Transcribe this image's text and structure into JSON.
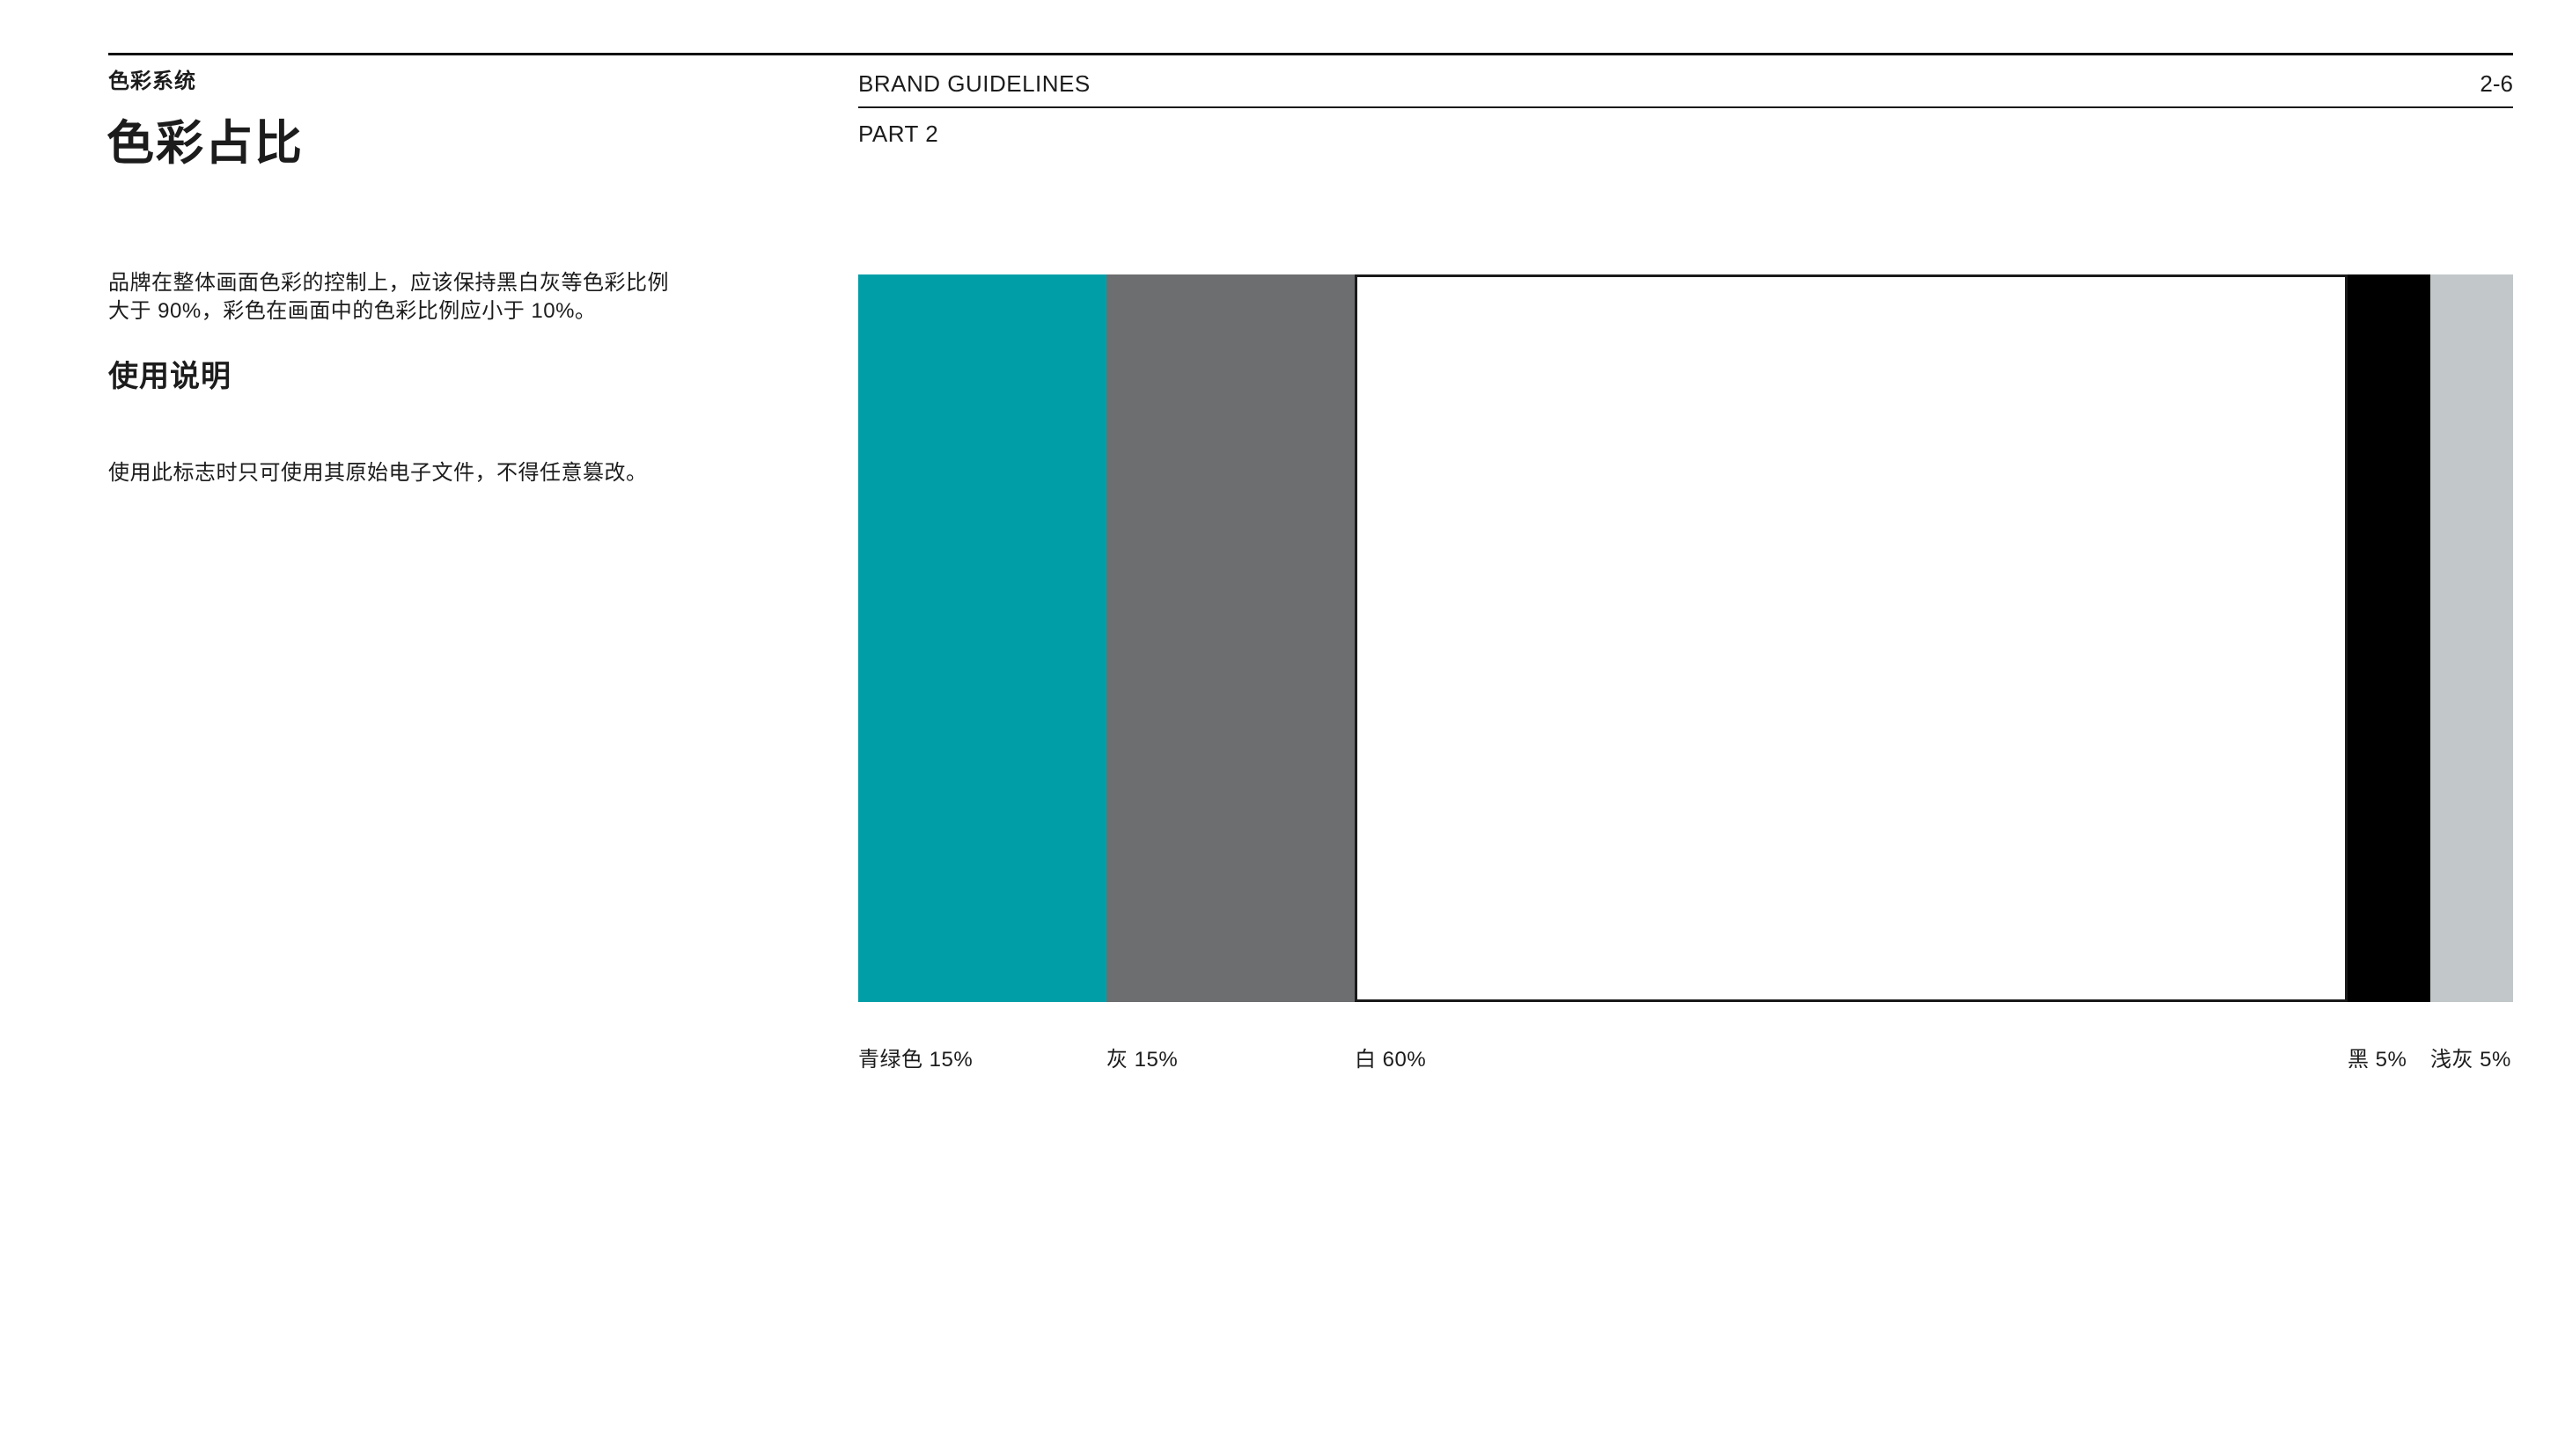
{
  "header": {
    "brand": "BRAND GUIDELINES",
    "page_number": "2-6",
    "part": "PART 2"
  },
  "left_column": {
    "section_label": "色彩系统",
    "title": "色彩占比",
    "intro": "品牌在整体画面色彩的控制上，应该保持黑白灰等色彩比例\n大于 90%，彩色在画面中的色彩比例应小于 10%。",
    "usage_heading": "使用说明",
    "usage_text": "使用此标志时只可使用其原始电子文件，不得任意篡改。"
  },
  "chart_data": {
    "type": "bar",
    "subtype": "stacked-proportion-strip",
    "title": "色彩占比",
    "unit": "%",
    "categories": [
      "青绿色",
      "灰",
      "白",
      "黑",
      "浅灰"
    ],
    "values": [
      15,
      15,
      60,
      5,
      5
    ],
    "segments": [
      {
        "name": "青绿色",
        "value": 15,
        "label": "青绿色 15%",
        "color": "#009FA8"
      },
      {
        "name": "灰",
        "value": 15,
        "label": "灰 15%",
        "color": "#6D6E70"
      },
      {
        "name": "白",
        "value": 60,
        "label": "白 60%",
        "color": "#FFFFFF",
        "border_color": "#1A1A1A"
      },
      {
        "name": "黑",
        "value": 5,
        "label": "黑 5%",
        "color": "#000000"
      },
      {
        "name": "浅灰",
        "value": 5,
        "label": "浅灰 5%",
        "color": "#C2C7C9"
      }
    ],
    "legend_position": "below, left-aligned to each segment",
    "grid": false
  }
}
